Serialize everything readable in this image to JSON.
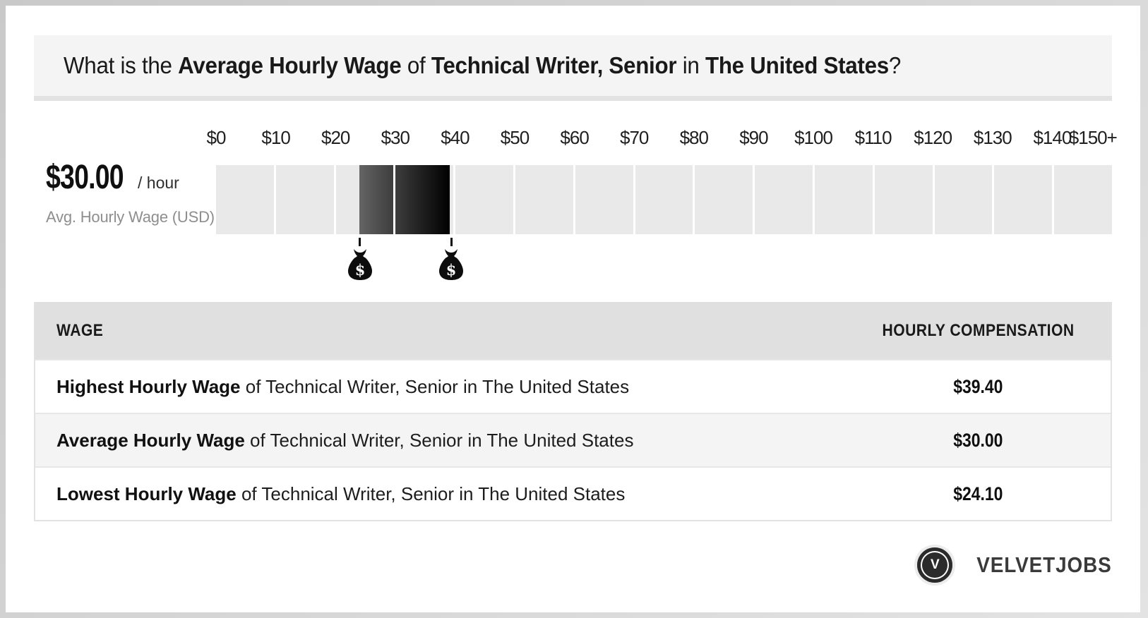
{
  "title": {
    "segments": [
      {
        "text": "What is the ",
        "bold": false
      },
      {
        "text": "Average Hourly Wage",
        "bold": true
      },
      {
        "text": " of ",
        "bold": false
      },
      {
        "text": "Technical Writer, Senior",
        "bold": true
      },
      {
        "text": " in ",
        "bold": false
      },
      {
        "text": "The United States",
        "bold": true
      },
      {
        "text": "?",
        "bold": false
      }
    ]
  },
  "wage_summary": {
    "amount": "$30.00",
    "per": "/ hour",
    "caption": "Avg. Hourly Wage (USD)"
  },
  "chart_data": {
    "type": "range-bar",
    "title": "Hourly wage scale for Technical Writer, Senior in The United States",
    "axis": {
      "min": 0,
      "max": 150,
      "step": 10,
      "unit": "USD per hour",
      "tick_labels": [
        "$0",
        "$10",
        "$20",
        "$30",
        "$40",
        "$50",
        "$60",
        "$70",
        "$80",
        "$90",
        "$100",
        "$110",
        "$120",
        "$130",
        "$140",
        "$150+"
      ]
    },
    "cells": 15,
    "range": {
      "low": 24.1,
      "high": 39.4,
      "low_label": "$24.10",
      "high_label": "$39.40"
    },
    "average": 30.0,
    "marker_icon": "money-bag-icon",
    "colors": {
      "cell": "#e9e9e9",
      "range_start": "#646464",
      "range_end": "#000000"
    }
  },
  "table": {
    "headers": [
      "WAGE",
      "HOURLY COMPENSATION"
    ],
    "rows": [
      {
        "label_bold": "Highest Hourly Wage",
        "label_rest": " of Technical Writer, Senior in The United States",
        "value": "$39.40"
      },
      {
        "label_bold": "Average Hourly Wage",
        "label_rest": " of Technical Writer, Senior in The United States",
        "value": "$30.00"
      },
      {
        "label_bold": "Lowest Hourly Wage",
        "label_rest": " of Technical Writer, Senior in The United States",
        "value": "$24.10"
      }
    ]
  },
  "footer": {
    "logo_letter": "V",
    "brand": "VELVETJOBS"
  }
}
